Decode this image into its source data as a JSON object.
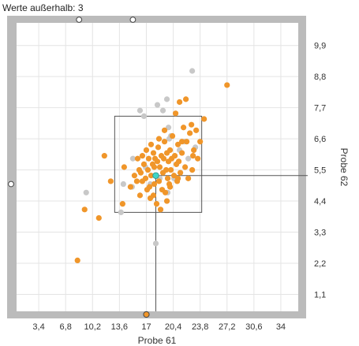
{
  "header": {
    "outside_label": "Werte außerhalb: 3"
  },
  "colors": {
    "selected": "#F0962A",
    "unselected": "#C8C8C8",
    "highlight": "#3FD6C8",
    "frame": "#BBBBBB",
    "box": "#555555",
    "grid": "#E4E4E4",
    "plot_bg": "#FFFFFF"
  },
  "chart_data": {
    "type": "scatter",
    "xlabel": "Probe 61",
    "ylabel": "Probe 62",
    "xlim": [
      0.6,
      36.2
    ],
    "ylim": [
      0.5,
      10.7
    ],
    "xticks": [
      3.4,
      6.8,
      10.2,
      13.6,
      17,
      20.4,
      23.8,
      27.2,
      30.6,
      34
    ],
    "xtick_labels": [
      "3,4",
      "6,8",
      "10,2",
      "13,6",
      "17",
      "20,4",
      "23,8",
      "27,2",
      "30,6",
      "34"
    ],
    "yticks": [
      1.1,
      2.2,
      3.3,
      4.4,
      5.5,
      6.6,
      7.7,
      8.8,
      9.9
    ],
    "ytick_labels": [
      "1,1",
      "2,2",
      "3,3",
      "4,4",
      "5,5",
      "6,6",
      "7,7",
      "8,8",
      "9,9"
    ],
    "grid": true,
    "selection_box": {
      "x": [
        13.0,
        24.0
      ],
      "y": [
        4.0,
        7.4
      ]
    },
    "crosshair": {
      "x": 18.2,
      "y": 5.3
    },
    "highlight_point": {
      "x": 18.2,
      "y": 5.3
    },
    "outside_markers": [
      {
        "axis": "top",
        "x": 8.5
      },
      {
        "axis": "top",
        "x": 15.3
      },
      {
        "axis": "left",
        "y": 5.0
      }
    ],
    "series": [
      {
        "name": "selected",
        "points": [
          [
            8.3,
            2.3
          ],
          [
            9.2,
            4.1
          ],
          [
            11.0,
            3.8
          ],
          [
            11.7,
            6.0
          ],
          [
            12.5,
            5.1
          ],
          [
            14.0,
            4.3
          ],
          [
            15.0,
            4.9
          ],
          [
            15.8,
            5.1
          ],
          [
            15.9,
            5.9
          ],
          [
            16.1,
            5.5
          ],
          [
            16.2,
            4.6
          ],
          [
            16.5,
            6.0
          ],
          [
            16.7,
            5.7
          ],
          [
            16.9,
            5.2
          ],
          [
            17.0,
            6.2
          ],
          [
            17.1,
            4.8
          ],
          [
            17.2,
            5.5
          ],
          [
            17.3,
            5.9
          ],
          [
            17.5,
            4.5
          ],
          [
            17.6,
            5.3
          ],
          [
            17.6,
            6.4
          ],
          [
            17.8,
            5.7
          ],
          [
            17.9,
            6.1
          ],
          [
            18.0,
            5.0
          ],
          [
            18.0,
            5.6
          ],
          [
            18.1,
            5.9
          ],
          [
            18.3,
            4.3
          ],
          [
            18.4,
            5.8
          ],
          [
            18.5,
            6.3
          ],
          [
            18.6,
            5.1
          ],
          [
            18.7,
            5.6
          ],
          [
            18.8,
            4.1
          ],
          [
            18.9,
            6.0
          ],
          [
            19.0,
            4.8
          ],
          [
            19.1,
            5.4
          ],
          [
            19.2,
            5.9
          ],
          [
            19.3,
            6.5
          ],
          [
            19.4,
            4.7
          ],
          [
            19.5,
            5.5
          ],
          [
            19.6,
            6.1
          ],
          [
            19.7,
            5.2
          ],
          [
            19.8,
            5.8
          ],
          [
            19.9,
            5.0
          ],
          [
            20.0,
            6.2
          ],
          [
            20.1,
            5.5
          ],
          [
            20.2,
            5.9
          ],
          [
            20.3,
            6.7
          ],
          [
            20.5,
            5.3
          ],
          [
            20.6,
            6.0
          ],
          [
            20.8,
            5.7
          ],
          [
            20.9,
            5.1
          ],
          [
            21.0,
            6.4
          ],
          [
            21.1,
            5.8
          ],
          [
            21.3,
            5.4
          ],
          [
            21.5,
            6.1
          ],
          [
            21.7,
            7.0
          ],
          [
            21.9,
            5.6
          ],
          [
            22.1,
            6.5
          ],
          [
            22.3,
            5.2
          ],
          [
            22.5,
            6.8
          ],
          [
            22.7,
            7.1
          ],
          [
            23.0,
            6.2
          ],
          [
            23.3,
            6.9
          ],
          [
            23.5,
            5.9
          ],
          [
            23.8,
            6.5
          ],
          [
            24.3,
            7.3
          ],
          [
            20.7,
            7.5
          ],
          [
            21.2,
            7.9
          ],
          [
            22.0,
            8.0
          ],
          [
            27.2,
            8.5
          ],
          [
            14.2,
            5.6
          ],
          [
            15.5,
            5.3
          ],
          [
            17.4,
            4.9
          ],
          [
            19.6,
            4.4
          ],
          [
            21.0,
            5.2
          ],
          [
            22.8,
            5.5
          ],
          [
            16.5,
            5.1
          ],
          [
            18.6,
            6.6
          ],
          [
            20.0,
            4.9
          ],
          [
            17.9,
            4.6
          ],
          [
            16.3,
            5.4
          ],
          [
            19.3,
            6.9
          ],
          [
            21.5,
            6.5
          ],
          [
            22.9,
            6.0
          ]
        ]
      },
      {
        "name": "unselected",
        "points": [
          [
            9.4,
            4.7
          ],
          [
            13.8,
            4.0
          ],
          [
            14.1,
            5.0
          ],
          [
            15.2,
            4.9
          ],
          [
            16.2,
            7.6
          ],
          [
            16.7,
            7.4
          ],
          [
            18.2,
            2.9
          ],
          [
            18.4,
            7.8
          ],
          [
            19.1,
            7.6
          ],
          [
            19.6,
            8.0
          ],
          [
            19.8,
            7.0
          ],
          [
            20.1,
            6.7
          ],
          [
            21.2,
            6.2
          ],
          [
            21.8,
            6.5
          ],
          [
            22.8,
            9.0
          ],
          [
            18.7,
            5.2
          ],
          [
            17.5,
            5.0
          ],
          [
            19.9,
            6.6
          ],
          [
            15.3,
            5.9
          ],
          [
            16.9,
            5.6
          ],
          [
            19.7,
            4.7
          ],
          [
            20.5,
            5.2
          ],
          [
            22.3,
            5.9
          ],
          [
            23.2,
            6.3
          ]
        ]
      }
    ]
  }
}
